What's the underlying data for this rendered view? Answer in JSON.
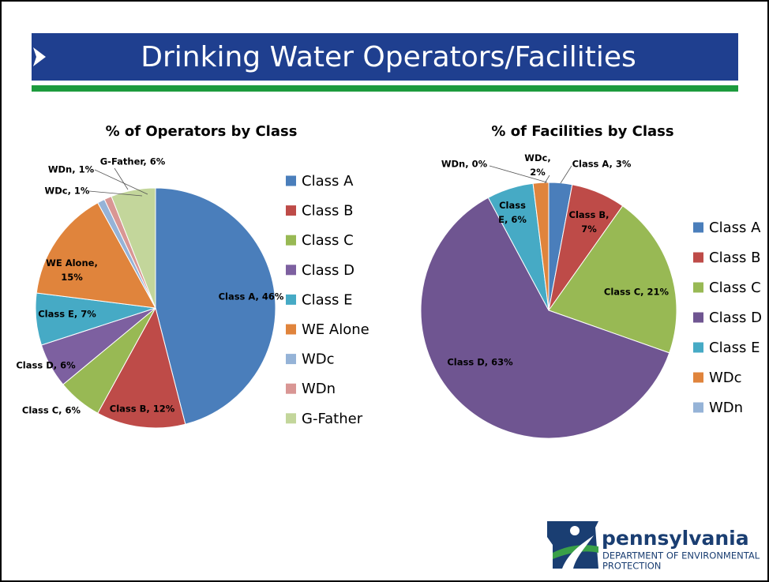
{
  "title": "Drinking Water Operators/Facilities",
  "logo": {
    "name": "pennsylvania",
    "lines": [
      "DEPARTMENT OF ENVIRONMENTAL",
      "PROTECTION"
    ]
  },
  "chart_data": [
    {
      "type": "pie",
      "title": "% of Operators by Class",
      "categories": [
        "Class A",
        "Class B",
        "Class C",
        "Class D",
        "Class E",
        "WE Alone",
        "WDc",
        "WDn",
        "G-Father"
      ],
      "values": [
        46,
        12,
        6,
        6,
        7,
        15,
        1,
        1,
        6
      ],
      "value_labels": [
        "Class A, 46%",
        "Class B, 12%",
        "Class C, 6%",
        "Class D, 6%",
        "Class E, 7%",
        "WE Alone, 15%",
        "WDc, 1%",
        "WDn, 1%",
        "G-Father, 6%"
      ],
      "colors": [
        "#4a7ebb",
        "#be4b48",
        "#98b954",
        "#7d60a0",
        "#46aac5",
        "#e0843c",
        "#95b3d7",
        "#d99694",
        "#c3d69b"
      ],
      "legend": "right"
    },
    {
      "type": "pie",
      "title": "% of Facilities by Class",
      "categories": [
        "Class A",
        "Class B",
        "Class C",
        "Class D",
        "Class E",
        "WDc",
        "WDn"
      ],
      "values": [
        3,
        7,
        21,
        63,
        6,
        2,
        0
      ],
      "value_labels": [
        "Class A, 3%",
        "Class B, 7%",
        "Class C, 21%",
        "Class D, 63%",
        "Class E, 6%",
        "WDc, 2%",
        "WDn, 0%"
      ],
      "colors": [
        "#4a7ebb",
        "#be4b48",
        "#98b954",
        "#6f5591",
        "#46aac5",
        "#e0843c",
        "#95b3d7"
      ],
      "legend": "right"
    }
  ]
}
